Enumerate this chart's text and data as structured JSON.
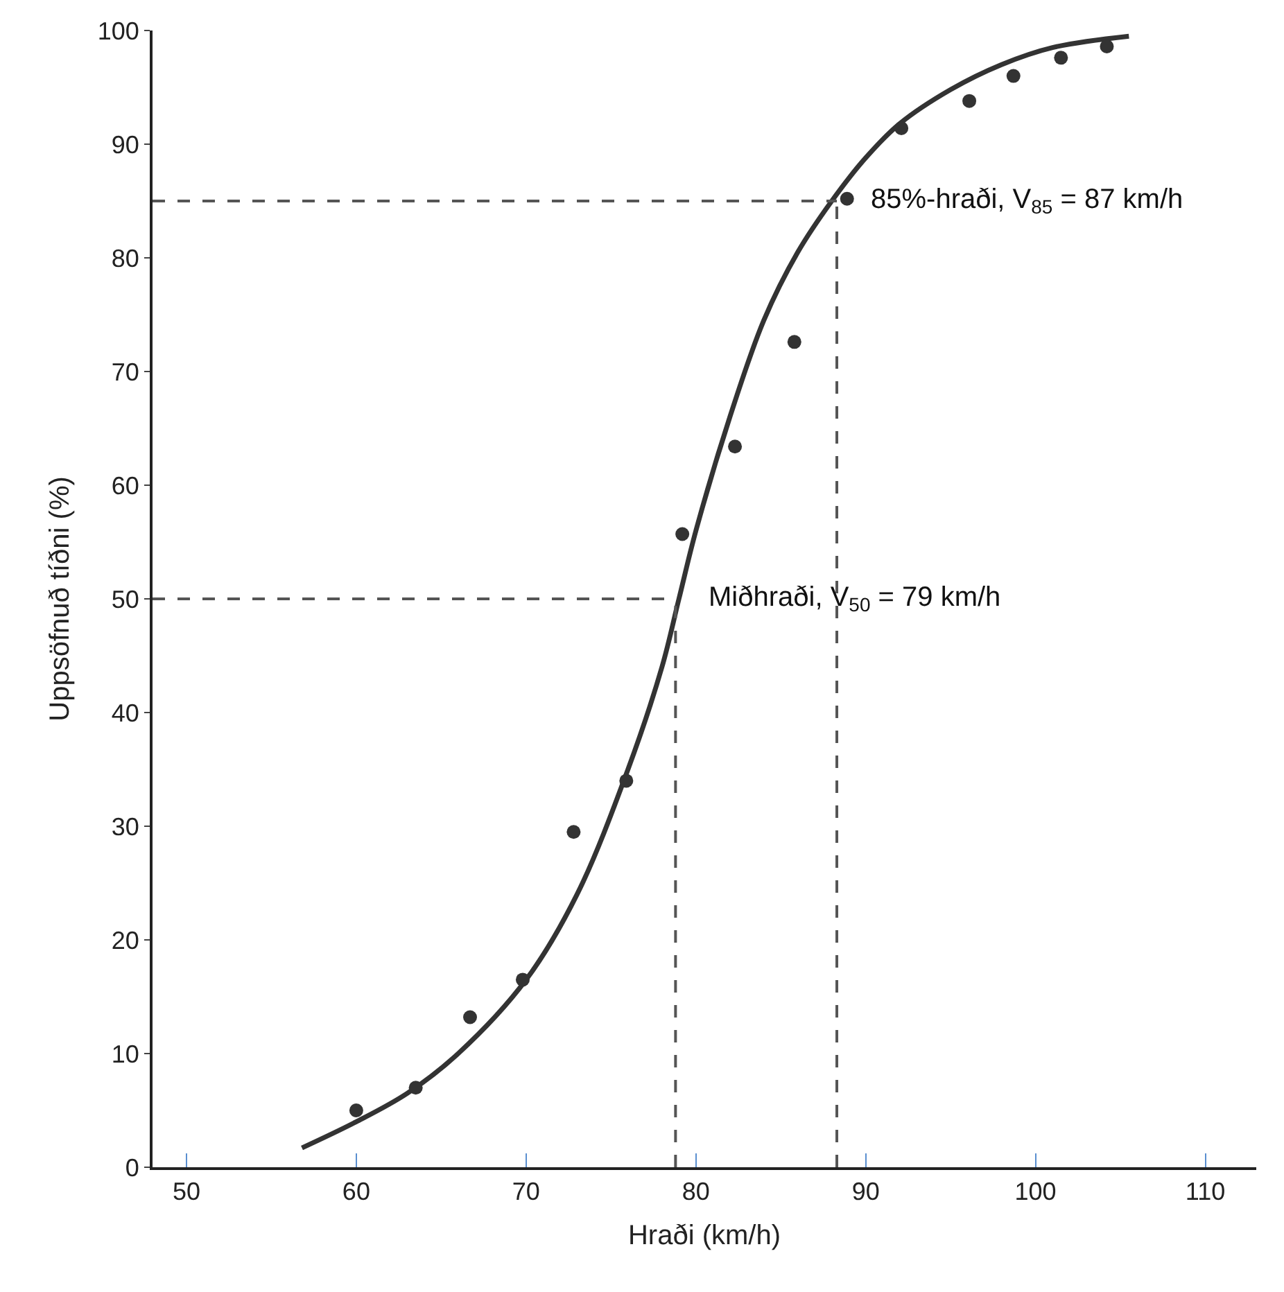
{
  "chart_data": {
    "type": "scatter",
    "xlabel": "Hraði (km/h)",
    "ylabel": "Uppsöfnuð tíðni (%)",
    "xlim": [
      48,
      113
    ],
    "xticks": [
      50,
      60,
      70,
      80,
      90,
      100,
      110
    ],
    "ylim": [
      0,
      100
    ],
    "yticks": [
      0,
      10,
      20,
      30,
      40,
      50,
      60,
      70,
      80,
      90,
      100
    ],
    "legend": false,
    "marker": "circle",
    "series": [
      {
        "color": "#333333",
        "x": [
          60,
          63.5,
          66.7,
          69.8,
          72.8,
          75.9,
          79.2,
          82.3,
          85.8,
          88.9,
          92.1,
          96.1,
          98.7,
          101.5,
          104.2
        ],
        "values": [
          5,
          7,
          13.2,
          16.5,
          29.5,
          34,
          55.7,
          63.4,
          72.6,
          85.2,
          91.4,
          93.8,
          96,
          97.6,
          98.6
        ]
      },
      {
        "type": "line",
        "color": "#333333",
        "line_style": "solid",
        "marker": "none",
        "x": [
          56.8,
          60,
          63,
          66,
          70,
          73,
          76,
          78,
          79,
          80,
          82,
          84,
          86,
          88,
          90,
          92,
          95,
          98,
          101,
          105.5
        ],
        "values": [
          1.7,
          4,
          6.5,
          10,
          16.5,
          24,
          35,
          44,
          50,
          56,
          66,
          74.5,
          80.5,
          85,
          88.8,
          91.8,
          94.8,
          97,
          98.5,
          99.5
        ]
      }
    ],
    "ref_lines": [
      {
        "axis": "x",
        "value": 78.8,
        "line_style": "dashed",
        "color": "#555555"
      },
      {
        "axis": "x",
        "value": 88.3,
        "line_style": "dashed",
        "color": "#555555"
      },
      {
        "axis": "y",
        "value": 50,
        "line_style": "dashed",
        "color": "#555555"
      },
      {
        "axis": "y",
        "value": 85,
        "line_style": "dashed",
        "color": "#555555"
      }
    ],
    "annotations": [
      {
        "text": "85%-hraði, V$_{85}$ = 87 km/h",
        "x": 88.3,
        "y": 85
      },
      {
        "text": "Miðhraði, V$_{50}$ = 79 km/h",
        "x": 78.8,
        "y": 50
      }
    ]
  }
}
